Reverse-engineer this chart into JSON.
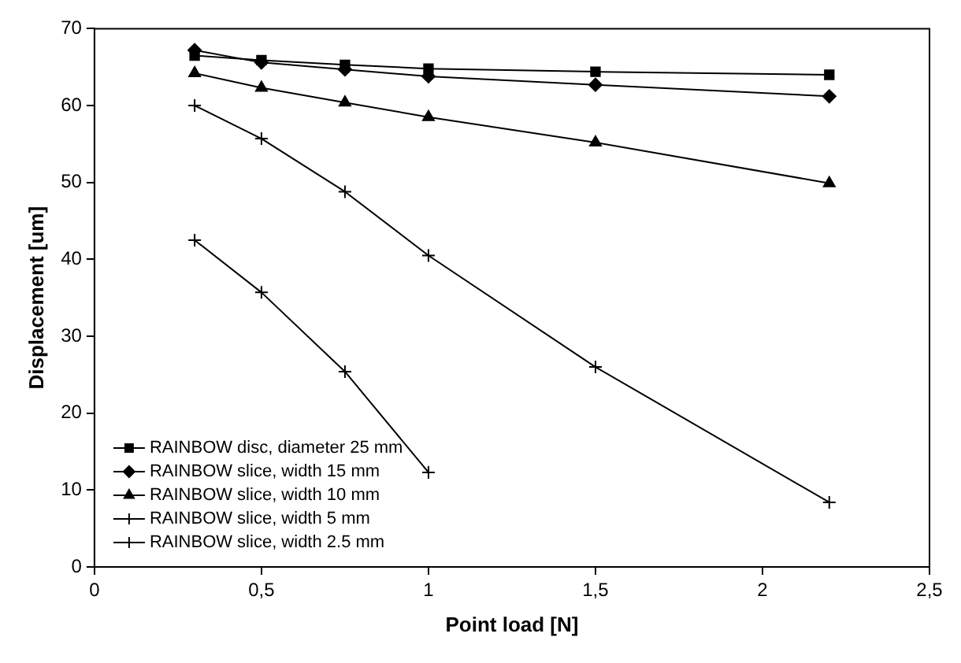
{
  "chart_data": {
    "type": "line",
    "xlabel": "Point load [N]",
    "ylabel": "Displacement [um]",
    "xlim": [
      0,
      2.5
    ],
    "xticks": [
      0,
      {
        "value": 0.5,
        "label": "0,5"
      },
      1,
      {
        "value": 1.5,
        "label": "1,5"
      },
      2,
      {
        "value": 2.5,
        "label": "2,5"
      }
    ],
    "ylim": [
      0,
      70
    ],
    "yticks": [
      0,
      10,
      20,
      30,
      40,
      50,
      60,
      70
    ],
    "grid": false,
    "legend": "bottom left",
    "series": [
      {
        "name": "RAINBOW disc, diameter 25 mm",
        "color": "#000000",
        "marker": "square",
        "x": [
          0.3,
          0.5,
          0.75,
          1,
          1.5,
          2.2
        ],
        "values": [
          66.5,
          65.9,
          65.3,
          64.8,
          64.4,
          64.0
        ]
      },
      {
        "name": "RAINBOW slice, width 15 mm",
        "color": "#000000",
        "marker": "diamond",
        "x": [
          0.3,
          0.5,
          0.75,
          1,
          1.5,
          2.2
        ],
        "values": [
          67.2,
          65.6,
          64.7,
          63.8,
          62.7,
          61.2
        ]
      },
      {
        "name": "RAINBOW slice, width 10 mm",
        "color": "#000000",
        "marker": "triangle",
        "x": [
          0.3,
          0.5,
          0.75,
          1,
          1.5,
          2.2
        ],
        "values": [
          64.2,
          62.3,
          60.4,
          58.5,
          55.2,
          49.9
        ]
      },
      {
        "name": "RAINBOW slice, width 5 mm",
        "color": "#000000",
        "marker": "cross",
        "x": [
          0.3,
          0.5,
          0.75,
          1,
          1.5,
          2.2
        ],
        "values": [
          60.0,
          55.7,
          48.8,
          40.5,
          26.0,
          8.4
        ]
      },
      {
        "name": "RAINBOW slice, width 2.5 mm",
        "color": "#000000",
        "marker": "cross",
        "x": [
          0.3,
          0.5,
          0.75,
          1
        ],
        "values": [
          42.5,
          35.7,
          25.4,
          12.3
        ]
      }
    ]
  }
}
